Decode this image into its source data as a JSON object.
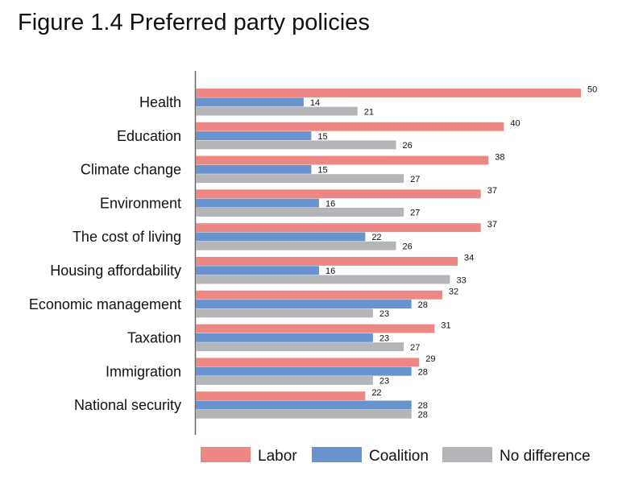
{
  "chart_data": {
    "type": "bar",
    "orientation": "horizontal",
    "title": "Figure 1.4 Preferred party policies",
    "xlabel": "",
    "ylabel": "",
    "xlim": [
      0,
      50
    ],
    "grid": false,
    "legend_position": "bottom",
    "categories": [
      "Health",
      "Education",
      "Climate change",
      "Environment",
      "The cost of living",
      "Housing affordability",
      "Economic management",
      "Taxation",
      "Immigration",
      "National security"
    ],
    "series": [
      {
        "name": "Labor",
        "color": "#ED8784",
        "values": [
          50,
          40,
          38,
          37,
          37,
          34,
          32,
          31,
          29,
          22
        ]
      },
      {
        "name": "Coalition",
        "color": "#6893CE",
        "values": [
          14,
          15,
          15,
          16,
          22,
          16,
          28,
          23,
          28,
          28
        ]
      },
      {
        "name": "No difference",
        "color": "#B4B5B8",
        "values": [
          21,
          26,
          27,
          27,
          26,
          33,
          23,
          27,
          23,
          28
        ]
      }
    ]
  }
}
